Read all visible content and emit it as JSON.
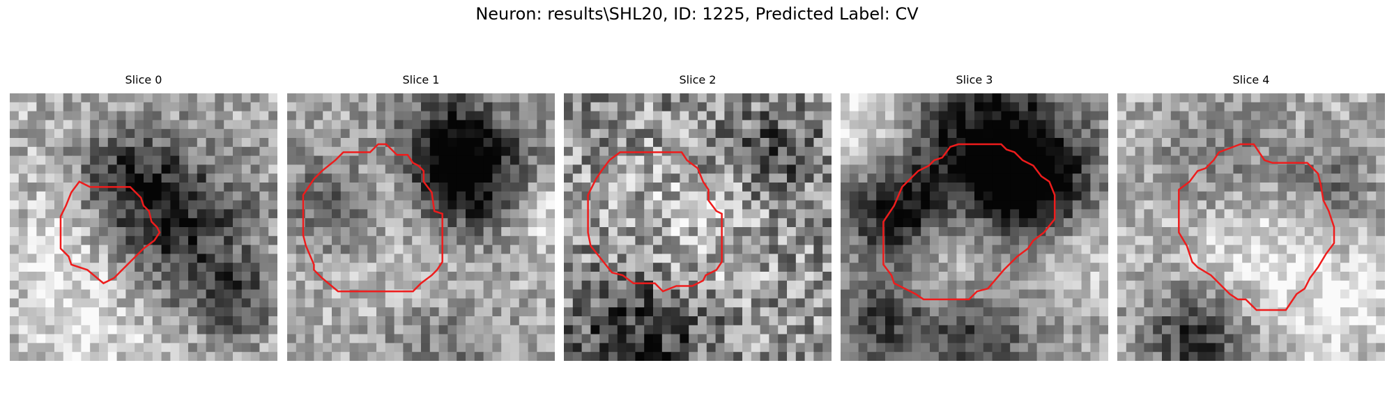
{
  "figure": {
    "title": "Neuron: results\\SHL20, ID: 1225, Predicted Label: CV"
  },
  "panels": [
    {
      "title": "Slice 0",
      "seed": 11,
      "dark_blobs": [
        [
          0.58,
          0.5,
          0.22,
          0.62
        ],
        [
          0.42,
          0.3,
          0.12,
          0.3
        ],
        [
          0.85,
          0.78,
          0.1,
          0.35
        ]
      ],
      "light_blobs": [
        [
          0.3,
          0.55,
          0.18,
          0.25
        ],
        [
          0.35,
          0.88,
          0.2,
          0.2
        ]
      ],
      "base": 0.7,
      "noise": 0.22,
      "contour": [
        [
          0.23,
          0.37
        ],
        [
          0.26,
          0.33
        ],
        [
          0.3,
          0.35
        ],
        [
          0.45,
          0.35
        ],
        [
          0.49,
          0.39
        ],
        [
          0.5,
          0.42
        ],
        [
          0.52,
          0.44
        ],
        [
          0.53,
          0.48
        ],
        [
          0.55,
          0.5
        ],
        [
          0.56,
          0.52
        ],
        [
          0.54,
          0.55
        ],
        [
          0.5,
          0.58
        ],
        [
          0.45,
          0.63
        ],
        [
          0.41,
          0.67
        ],
        [
          0.39,
          0.69
        ],
        [
          0.35,
          0.71
        ],
        [
          0.29,
          0.66
        ],
        [
          0.23,
          0.64
        ],
        [
          0.22,
          0.61
        ],
        [
          0.19,
          0.58
        ],
        [
          0.19,
          0.46
        ],
        [
          0.21,
          0.42
        ]
      ]
    },
    {
      "title": "Slice 1",
      "seed": 23,
      "dark_blobs": [
        [
          0.68,
          0.32,
          0.16,
          0.6
        ],
        [
          0.6,
          0.18,
          0.14,
          0.4
        ],
        [
          0.2,
          0.4,
          0.14,
          0.35
        ],
        [
          0.55,
          0.92,
          0.18,
          0.3
        ]
      ],
      "light_blobs": [
        [
          0.35,
          0.35,
          0.12,
          0.25
        ],
        [
          0.5,
          0.75,
          0.22,
          0.2
        ],
        [
          0.95,
          0.45,
          0.1,
          0.25
        ]
      ],
      "base": 0.66,
      "noise": 0.2,
      "contour": [
        [
          0.06,
          0.38
        ],
        [
          0.1,
          0.32
        ],
        [
          0.13,
          0.29
        ],
        [
          0.18,
          0.25
        ],
        [
          0.21,
          0.22
        ],
        [
          0.31,
          0.22
        ],
        [
          0.34,
          0.19
        ],
        [
          0.37,
          0.19
        ],
        [
          0.39,
          0.21
        ],
        [
          0.41,
          0.23
        ],
        [
          0.45,
          0.23
        ],
        [
          0.47,
          0.26
        ],
        [
          0.49,
          0.27
        ],
        [
          0.51,
          0.29
        ],
        [
          0.51,
          0.33
        ],
        [
          0.54,
          0.37
        ],
        [
          0.55,
          0.44
        ],
        [
          0.58,
          0.45
        ],
        [
          0.58,
          0.63
        ],
        [
          0.56,
          0.66
        ],
        [
          0.54,
          0.68
        ],
        [
          0.5,
          0.71
        ],
        [
          0.47,
          0.74
        ],
        [
          0.19,
          0.74
        ],
        [
          0.13,
          0.69
        ],
        [
          0.1,
          0.66
        ],
        [
          0.1,
          0.64
        ],
        [
          0.07,
          0.57
        ],
        [
          0.06,
          0.53
        ]
      ]
    },
    {
      "title": "Slice 2",
      "seed": 37,
      "dark_blobs": [
        [
          0.3,
          0.9,
          0.18,
          0.4
        ],
        [
          0.8,
          0.2,
          0.12,
          0.25
        ]
      ],
      "light_blobs": [
        [
          0.45,
          0.55,
          0.18,
          0.2
        ]
      ],
      "base": 0.58,
      "noise": 0.32,
      "contour": [
        [
          0.09,
          0.38
        ],
        [
          0.12,
          0.32
        ],
        [
          0.14,
          0.29
        ],
        [
          0.17,
          0.25
        ],
        [
          0.21,
          0.22
        ],
        [
          0.44,
          0.22
        ],
        [
          0.46,
          0.25
        ],
        [
          0.5,
          0.28
        ],
        [
          0.52,
          0.33
        ],
        [
          0.54,
          0.36
        ],
        [
          0.54,
          0.4
        ],
        [
          0.57,
          0.44
        ],
        [
          0.59,
          0.45
        ],
        [
          0.59,
          0.63
        ],
        [
          0.57,
          0.66
        ],
        [
          0.53,
          0.68
        ],
        [
          0.52,
          0.7
        ],
        [
          0.48,
          0.72
        ],
        [
          0.42,
          0.72
        ],
        [
          0.37,
          0.74
        ],
        [
          0.34,
          0.71
        ],
        [
          0.26,
          0.71
        ],
        [
          0.22,
          0.68
        ],
        [
          0.18,
          0.67
        ],
        [
          0.14,
          0.62
        ],
        [
          0.1,
          0.57
        ],
        [
          0.09,
          0.52
        ]
      ]
    },
    {
      "title": "Slice 3",
      "seed": 51,
      "dark_blobs": [
        [
          0.55,
          0.22,
          0.22,
          0.7
        ],
        [
          0.2,
          0.45,
          0.12,
          0.55
        ],
        [
          0.72,
          0.35,
          0.14,
          0.5
        ],
        [
          0.15,
          0.85,
          0.12,
          0.4
        ],
        [
          0.5,
          0.95,
          0.15,
          0.4
        ]
      ],
      "light_blobs": [
        [
          0.45,
          0.55,
          0.16,
          0.25
        ],
        [
          0.1,
          0.1,
          0.14,
          0.3
        ],
        [
          0.9,
          0.6,
          0.12,
          0.2
        ]
      ],
      "base": 0.64,
      "noise": 0.18,
      "contour": [
        [
          0.16,
          0.48
        ],
        [
          0.18,
          0.45
        ],
        [
          0.2,
          0.42
        ],
        [
          0.23,
          0.35
        ],
        [
          0.26,
          0.32
        ],
        [
          0.29,
          0.29
        ],
        [
          0.33,
          0.27
        ],
        [
          0.35,
          0.25
        ],
        [
          0.38,
          0.24
        ],
        [
          0.41,
          0.2
        ],
        [
          0.44,
          0.19
        ],
        [
          0.6,
          0.19
        ],
        [
          0.62,
          0.21
        ],
        [
          0.65,
          0.22
        ],
        [
          0.68,
          0.25
        ],
        [
          0.72,
          0.27
        ],
        [
          0.75,
          0.31
        ],
        [
          0.78,
          0.33
        ],
        [
          0.8,
          0.38
        ],
        [
          0.8,
          0.47
        ],
        [
          0.76,
          0.52
        ],
        [
          0.72,
          0.55
        ],
        [
          0.7,
          0.58
        ],
        [
          0.66,
          0.61
        ],
        [
          0.61,
          0.66
        ],
        [
          0.55,
          0.73
        ],
        [
          0.51,
          0.74
        ],
        [
          0.48,
          0.77
        ],
        [
          0.31,
          0.77
        ],
        [
          0.28,
          0.75
        ],
        [
          0.24,
          0.73
        ],
        [
          0.2,
          0.71
        ],
        [
          0.19,
          0.68
        ],
        [
          0.16,
          0.64
        ]
      ]
    },
    {
      "title": "Slice 4",
      "seed": 63,
      "dark_blobs": [
        [
          0.3,
          0.9,
          0.14,
          0.55
        ],
        [
          0.4,
          0.25,
          0.18,
          0.25
        ],
        [
          0.8,
          0.35,
          0.12,
          0.25
        ]
      ],
      "light_blobs": [
        [
          0.5,
          0.6,
          0.2,
          0.25
        ],
        [
          0.85,
          0.8,
          0.15,
          0.2
        ]
      ],
      "base": 0.7,
      "noise": 0.2,
      "contour": [
        [
          0.23,
          0.36
        ],
        [
          0.27,
          0.33
        ],
        [
          0.3,
          0.29
        ],
        [
          0.33,
          0.28
        ],
        [
          0.36,
          0.25
        ],
        [
          0.38,
          0.22
        ],
        [
          0.46,
          0.19
        ],
        [
          0.51,
          0.19
        ],
        [
          0.55,
          0.25
        ],
        [
          0.58,
          0.26
        ],
        [
          0.71,
          0.26
        ],
        [
          0.75,
          0.3
        ],
        [
          0.76,
          0.34
        ],
        [
          0.77,
          0.4
        ],
        [
          0.79,
          0.44
        ],
        [
          0.81,
          0.5
        ],
        [
          0.81,
          0.56
        ],
        [
          0.78,
          0.6
        ],
        [
          0.75,
          0.65
        ],
        [
          0.72,
          0.69
        ],
        [
          0.7,
          0.73
        ],
        [
          0.67,
          0.75
        ],
        [
          0.63,
          0.81
        ],
        [
          0.52,
          0.81
        ],
        [
          0.48,
          0.77
        ],
        [
          0.45,
          0.77
        ],
        [
          0.42,
          0.75
        ],
        [
          0.39,
          0.72
        ],
        [
          0.35,
          0.68
        ],
        [
          0.3,
          0.65
        ],
        [
          0.28,
          0.63
        ],
        [
          0.26,
          0.57
        ],
        [
          0.23,
          0.52
        ]
      ]
    }
  ]
}
